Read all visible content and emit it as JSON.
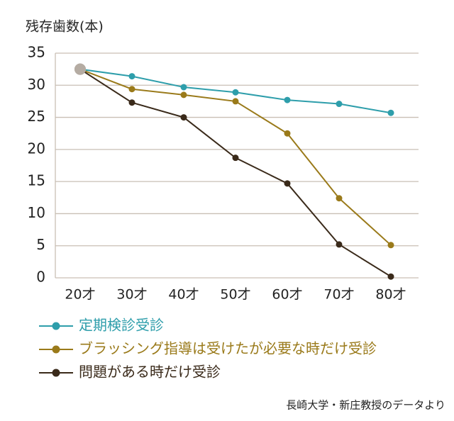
{
  "chart_data": {
    "type": "line",
    "y_label": "残存歯数(本)",
    "categories": [
      "20才",
      "30才",
      "40才",
      "50才",
      "60才",
      "70才",
      "80才"
    ],
    "series": [
      {
        "name": "定期検診受診",
        "color": "#2e9eab",
        "values": [
          32.5,
          31.4,
          29.7,
          28.9,
          27.7,
          27.1,
          25.7
        ]
      },
      {
        "name": "ブラッシング指導は受けたが必要な時だけ受診",
        "color": "#9a7a1a",
        "values": [
          32.5,
          29.4,
          28.5,
          27.5,
          22.5,
          12.4,
          5.1
        ]
      },
      {
        "name": "問題がある時だけ受診",
        "color": "#3a2a1a",
        "values": [
          32.5,
          27.3,
          25.0,
          18.7,
          14.7,
          5.2,
          0.2
        ]
      }
    ],
    "first_point_color": "#b5aca3",
    "ylim": [
      0,
      35
    ],
    "yticks": [
      0,
      5,
      10,
      15,
      20,
      25,
      30,
      35
    ],
    "grid": true,
    "source": "長崎大学・新庄教授のデータより"
  }
}
